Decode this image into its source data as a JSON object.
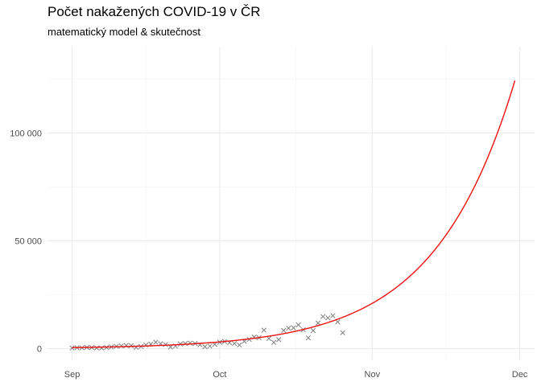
{
  "chart_data": {
    "type": "scatter",
    "title": "Počet nakažených COVID-19  v ČR",
    "subtitle": "matematický model & skutečnost",
    "xlabel": "",
    "ylabel": "",
    "x_ticks": [
      "Sep",
      "Oct",
      "Nov",
      "Dec"
    ],
    "x_tick_dates": [
      "2020-09-01",
      "2020-10-01",
      "2020-11-01",
      "2020-12-01"
    ],
    "y_ticks": [
      "0",
      "50 000",
      "100 000"
    ],
    "y_tick_values": [
      0,
      50000,
      100000
    ],
    "xlim": [
      "2020-08-27",
      "2020-12-04"
    ],
    "ylim": [
      -5000,
      140000
    ],
    "grid": true,
    "legend": "none",
    "colors": {
      "model": "#ee1111",
      "observed": "#7f7f7f",
      "grid": "#ebebeb"
    },
    "series": [
      {
        "kind": "line",
        "marker": "line",
        "model": {
          "base": 500,
          "start": "2020-09-01",
          "daily_growth": 1.0632,
          "end": "2020-11-30"
        }
      },
      {
        "kind": "points",
        "marker": "x",
        "points": [
          [
            "2020-09-01",
            300
          ],
          [
            "2020-09-02",
            450
          ],
          [
            "2020-09-03",
            400
          ],
          [
            "2020-09-04",
            600
          ],
          [
            "2020-09-05",
            550
          ],
          [
            "2020-09-06",
            350
          ],
          [
            "2020-09-07",
            300
          ],
          [
            "2020-09-08",
            550
          ],
          [
            "2020-09-09",
            800
          ],
          [
            "2020-09-10",
            1100
          ],
          [
            "2020-09-11",
            1300
          ],
          [
            "2020-09-12",
            1500
          ],
          [
            "2020-09-13",
            1400
          ],
          [
            "2020-09-14",
            600
          ],
          [
            "2020-09-15",
            1000
          ],
          [
            "2020-09-16",
            1700
          ],
          [
            "2020-09-17",
            2100
          ],
          [
            "2020-09-18",
            3000
          ],
          [
            "2020-09-19",
            2300
          ],
          [
            "2020-09-20",
            1900
          ],
          [
            "2020-09-21",
            800
          ],
          [
            "2020-09-22",
            1200
          ],
          [
            "2020-09-23",
            2200
          ],
          [
            "2020-09-24",
            2400
          ],
          [
            "2020-09-25",
            2600
          ],
          [
            "2020-09-26",
            2400
          ],
          [
            "2020-09-27",
            1800
          ],
          [
            "2020-09-28",
            900
          ],
          [
            "2020-09-29",
            1200
          ],
          [
            "2020-09-30",
            2000
          ],
          [
            "2020-10-01",
            3000
          ],
          [
            "2020-10-02",
            3300
          ],
          [
            "2020-10-03",
            2800
          ],
          [
            "2020-10-04",
            2400
          ],
          [
            "2020-10-05",
            1700
          ],
          [
            "2020-10-06",
            3400
          ],
          [
            "2020-10-07",
            4300
          ],
          [
            "2020-10-08",
            5400
          ],
          [
            "2020-10-09",
            5100
          ],
          [
            "2020-10-10",
            8600
          ],
          [
            "2020-10-11",
            4700
          ],
          [
            "2020-10-12",
            2900
          ],
          [
            "2020-10-13",
            4200
          ],
          [
            "2020-10-14",
            8500
          ],
          [
            "2020-10-15",
            9500
          ],
          [
            "2020-10-16",
            9700
          ],
          [
            "2020-10-17",
            11000
          ],
          [
            "2020-10-18",
            8800
          ],
          [
            "2020-10-19",
            5000
          ],
          [
            "2020-10-20",
            8400
          ],
          [
            "2020-10-21",
            11900
          ],
          [
            "2020-10-22",
            14900
          ],
          [
            "2020-10-23",
            14300
          ],
          [
            "2020-10-24",
            15300
          ],
          [
            "2020-10-25",
            12400
          ],
          [
            "2020-10-26",
            7400
          ]
        ]
      }
    ]
  }
}
